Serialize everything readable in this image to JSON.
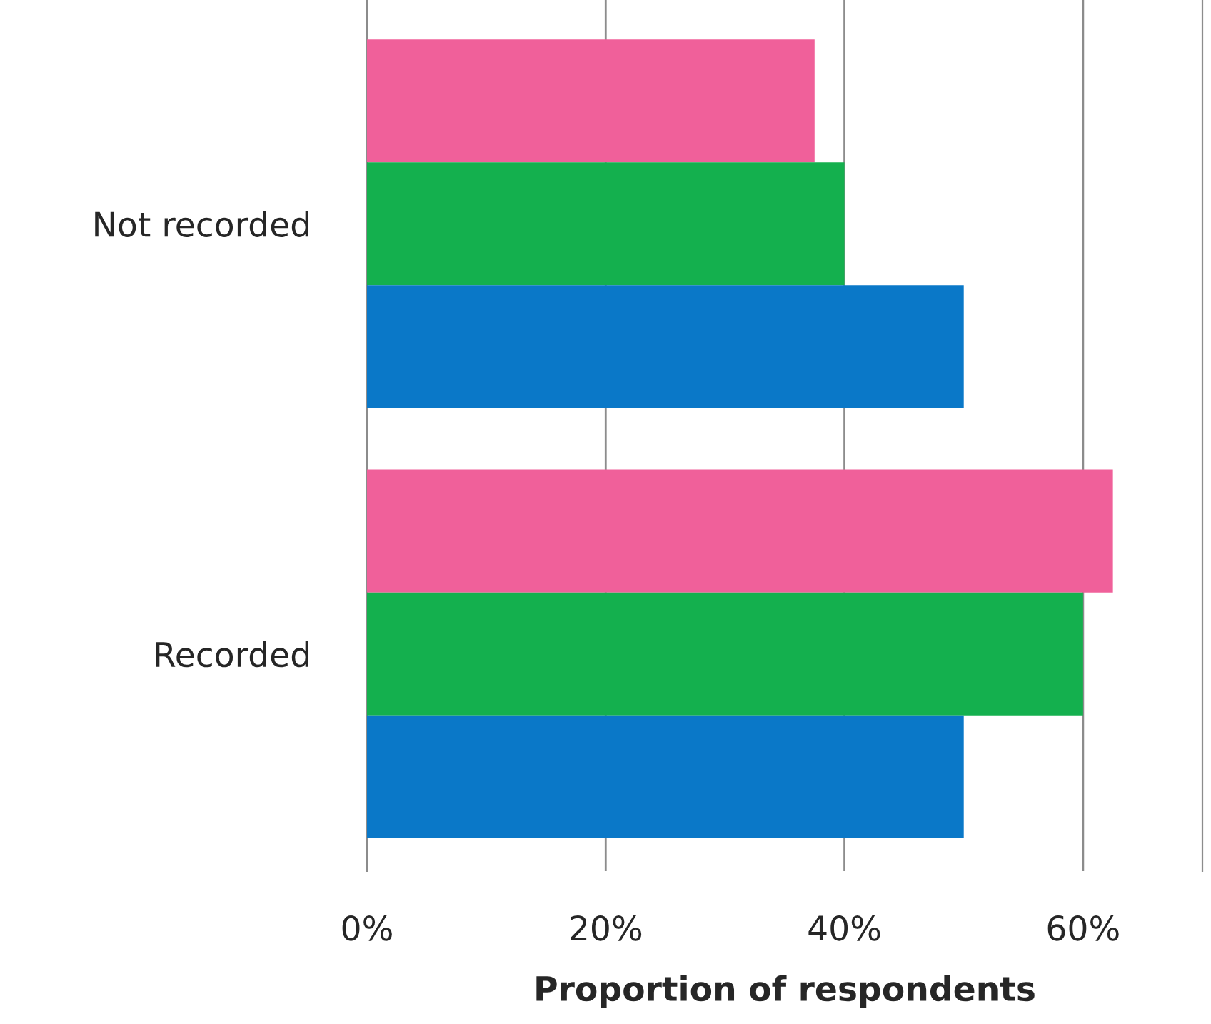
{
  "chart_data": {
    "type": "bar",
    "orientation": "horizontal",
    "xlabel": "Proportion of respondents",
    "categories": [
      "Not recorded",
      "Recorded"
    ],
    "series": [
      {
        "color": "#f0609a",
        "values": [
          37.5,
          62.5
        ]
      },
      {
        "color": "#14b04e",
        "values": [
          40,
          60
        ]
      },
      {
        "color": "#0a78c8",
        "values": [
          50,
          50
        ]
      }
    ],
    "xlim": [
      0,
      70
    ],
    "xticks": [
      {
        "value": 0,
        "label": "0%"
      },
      {
        "value": 20,
        "label": "20%"
      },
      {
        "value": 40,
        "label": "40%"
      },
      {
        "value": 60,
        "label": "60%"
      }
    ],
    "grid": "x",
    "legend": false
  }
}
